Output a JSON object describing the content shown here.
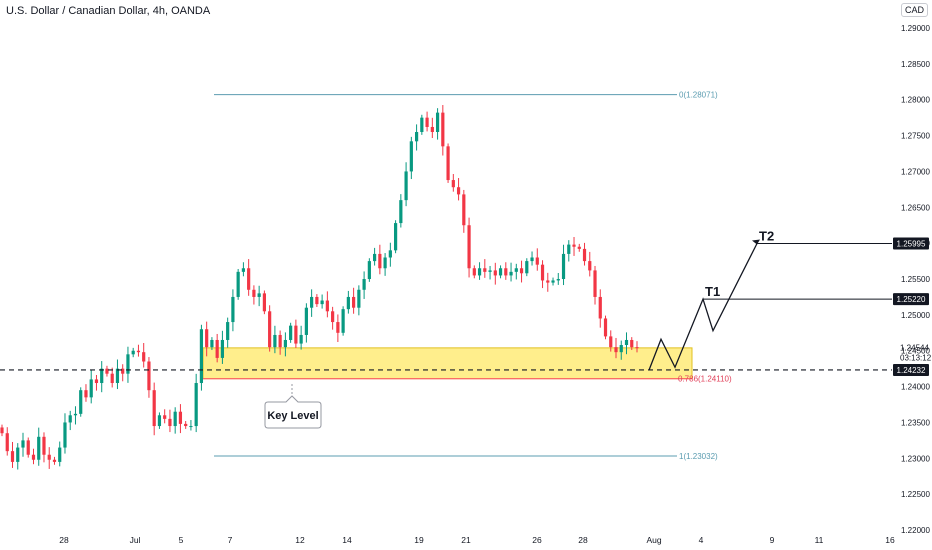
{
  "header": {
    "title": "U.S. Dollar / Canadian Dollar, 4h, OANDA",
    "currency": "CAD"
  },
  "colors": {
    "up": "#26a69a",
    "up_body": "#089981",
    "down": "#f23645",
    "fib_line": "#5b9cb0",
    "key_zone_fill": "#ffec80",
    "key_zone_border": "#e0c020",
    "price_tag": "#131722"
  },
  "chart_data": {
    "type": "candlestick",
    "title": "U.S. Dollar / Canadian Dollar, 4h, OANDA",
    "ylim": [
      1.2,
      1.293
    ],
    "y_ticks": [
      "1.29000",
      "1.28500",
      "1.28000",
      "1.27500",
      "1.27000",
      "1.26500",
      "1.26000",
      "1.25500",
      "1.25000",
      "1.24500",
      "1.24000",
      "1.23500",
      "1.23000",
      "1.22500",
      "1.22000"
    ],
    "x_ticks": [
      "28",
      "Jul",
      "5",
      "7",
      "12",
      "14",
      "19",
      "21",
      "26",
      "28",
      "Aug",
      "4",
      "9",
      "11",
      "16"
    ],
    "fib_levels": [
      {
        "label": "0(1.28071)",
        "value": 1.28071
      },
      {
        "label": "0.786(1.24110)",
        "value": 1.2411
      },
      {
        "label": "1(1.23032)",
        "value": 1.23032
      }
    ],
    "key_level": {
      "label": "Key Level",
      "top": 1.2454,
      "bottom": 1.2411
    },
    "price_labels": [
      {
        "text": "1.25995",
        "value": 1.25995
      },
      {
        "text": "1.25220",
        "value": 1.2522
      },
      {
        "text": "1.24232",
        "value": 1.24232
      }
    ],
    "current_price": {
      "text": "1.24544",
      "countdown": "03:13:12",
      "value": 1.24544
    },
    "targets": [
      {
        "label": "T1",
        "value": 1.2522
      },
      {
        "label": "T2",
        "value": 1.25995
      }
    ],
    "projection_path": [
      1.2423,
      1.2466,
      1.2427,
      1.2522,
      1.2478,
      1.25995
    ],
    "close_path": [
      1.2335,
      1.231,
      1.2295,
      1.2315,
      1.2325,
      1.2305,
      1.2298,
      1.233,
      1.2305,
      1.2298,
      1.2295,
      1.2315,
      1.235,
      1.236,
      1.2362,
      1.2395,
      1.2385,
      1.241,
      1.2405,
      1.2425,
      1.2418,
      1.2405,
      1.2425,
      1.2418,
      1.2445,
      1.245,
      1.2448,
      1.2435,
      1.2395,
      1.2345,
      1.236,
      1.2355,
      1.2345,
      1.2365,
      1.2348,
      1.2345,
      1.2345,
      1.2405,
      1.248,
      1.2455,
      1.2465,
      1.244,
      1.2465,
      1.249,
      1.2525,
      1.256,
      1.2565,
      1.2535,
      1.2525,
      1.253,
      1.2505,
      1.2455,
      1.2472,
      1.2455,
      1.2465,
      1.2485,
      1.246,
      1.2472,
      1.251,
      1.2525,
      1.2515,
      1.252,
      1.2505,
      1.249,
      1.2475,
      1.2508,
      1.2525,
      1.251,
      1.2535,
      1.255,
      1.2575,
      1.2585,
      1.2565,
      1.258,
      1.259,
      1.2628,
      1.266,
      1.27,
      1.2742,
      1.2755,
      1.2775,
      1.2762,
      1.2755,
      1.2782,
      1.2735,
      1.2688,
      1.2678,
      1.2668,
      1.2625,
      1.2565,
      1.2555,
      1.2565,
      1.256,
      1.2562,
      1.2555,
      1.2565,
      1.2555,
      1.256,
      1.2565,
      1.2558,
      1.2575,
      1.258,
      1.257,
      1.2548,
      1.2545,
      1.2548,
      1.255,
      1.2585,
      1.2598,
      1.2595,
      1.2592,
      1.2575,
      1.2562,
      1.2525,
      1.2495,
      1.247,
      1.2455,
      1.2448,
      1.2458,
      1.2465,
      1.2455,
      1.2454
    ]
  }
}
